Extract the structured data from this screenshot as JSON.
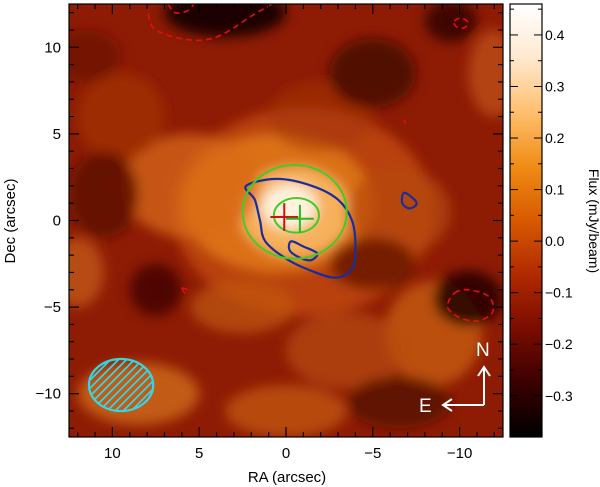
{
  "chart_data": {
    "type": "heatmap",
    "xlabel": "RA (arcsec)",
    "ylabel": "Dec (arcsec)",
    "xlim": [
      12.5,
      -12.5
    ],
    "ylim": [
      -12.5,
      12.5
    ],
    "x_ticks": [
      10,
      5,
      0,
      -5,
      -10
    ],
    "x_tick_labels": [
      "10",
      "5",
      "0",
      "−5",
      "−10"
    ],
    "y_ticks": [
      -10,
      -5,
      0,
      5,
      10
    ],
    "y_tick_labels": [
      "−10",
      "−5",
      "0",
      "5",
      "10"
    ],
    "colorbar": {
      "label": "Flux (mJy/beam)",
      "range": [
        -0.38,
        0.46
      ],
      "ticks": [
        0.4,
        0.3,
        0.2,
        0.1,
        0.0,
        -0.1,
        -0.2,
        -0.3
      ],
      "tick_labels": [
        "0.4",
        "0.3",
        "0.2",
        "0.1",
        "0.0",
        "−0.1",
        "−0.2",
        "−0.3"
      ],
      "colormap": [
        "#000000",
        "#3a0000",
        "#7a0c00",
        "#b02a00",
        "#d85a00",
        "#f08c14",
        "#ffbf6e",
        "#ffe9cf",
        "#ffffff"
      ]
    },
    "emission_peak": {
      "ra": 0.5,
      "dec": 0.5,
      "flux": 0.45
    },
    "blue_contours": [
      {
        "points": [
          [
            2.3,
            2.0
          ],
          [
            0.5,
            2.4
          ],
          [
            -1.5,
            2.0
          ],
          [
            -3.0,
            1.2
          ],
          [
            -3.8,
            0.0
          ],
          [
            -4.0,
            -1.5
          ],
          [
            -3.8,
            -2.8
          ],
          [
            -2.8,
            -3.3
          ],
          [
            -1.2,
            -2.8
          ],
          [
            0.0,
            -2.2
          ],
          [
            1.2,
            -1.2
          ],
          [
            1.5,
            0.0
          ],
          [
            1.8,
            1.2
          ]
        ]
      },
      {
        "points": [
          [
            -0.3,
            -1.2
          ],
          [
            -1.0,
            -1.5
          ],
          [
            -1.8,
            -1.9
          ],
          [
            -1.4,
            -2.3
          ],
          [
            -0.7,
            -2.1
          ],
          [
            -0.2,
            -1.7
          ]
        ]
      },
      {
        "points": [
          [
            -6.8,
            1.6
          ],
          [
            -7.4,
            1.2
          ],
          [
            -7.5,
            0.9
          ],
          [
            -7.1,
            0.7
          ],
          [
            -6.7,
            1.0
          ]
        ]
      }
    ],
    "red_dashed_contours": [
      {
        "points": [
          [
            8.0,
            12.5
          ],
          [
            7.7,
            11.2
          ],
          [
            6.5,
            10.6
          ],
          [
            5.0,
            10.4
          ],
          [
            4.0,
            10.6
          ],
          [
            3.2,
            11.0
          ],
          [
            2.0,
            11.8
          ],
          [
            0.8,
            12.5
          ]
        ]
      },
      {
        "points": [
          [
            6.8,
            12.5
          ],
          [
            6.4,
            12.0
          ],
          [
            5.7,
            12.1
          ],
          [
            5.3,
            12.5
          ]
        ]
      },
      {
        "points": [
          [
            -9.7,
            11.5
          ],
          [
            -10.1,
            11.7
          ],
          [
            -10.5,
            11.4
          ],
          [
            -10.2,
            11.1
          ],
          [
            -9.8,
            11.2
          ]
        ]
      },
      {
        "points": [
          [
            -9.7,
            -4.2
          ],
          [
            -10.5,
            -4.0
          ],
          [
            -11.7,
            -4.4
          ],
          [
            -11.9,
            -5.3
          ],
          [
            -11.0,
            -5.8
          ],
          [
            -10.0,
            -5.6
          ],
          [
            -9.3,
            -5.0
          ]
        ]
      },
      {
        "points": [
          [
            6.0,
            -3.9
          ],
          [
            5.7,
            -4.0
          ],
          [
            5.8,
            -4.2
          ]
        ]
      },
      {
        "points": [
          [
            -6.8,
            5.8
          ],
          [
            -6.9,
            5.6
          ]
        ]
      }
    ],
    "green_ellipses": [
      {
        "ra": -0.5,
        "dec": 0.5,
        "semi_ra": 3.0,
        "semi_dec": 2.7
      },
      {
        "ra": -0.6,
        "dec": 0.3,
        "semi_ra": 1.3,
        "semi_dec": 1.0
      }
    ],
    "markers": [
      {
        "color": "#cc1111",
        "ra": 0.1,
        "dec": 0.2,
        "size": 0.8
      },
      {
        "color": "#22bb22",
        "ra": -0.8,
        "dec": 0.1,
        "size": 0.8
      }
    ],
    "beam": {
      "ra": 9.5,
      "dec": -9.5,
      "semi_major": 1.85,
      "semi_minor": 1.5
    },
    "compass": {
      "north_label": "N",
      "east_label": "E"
    },
    "colors": {
      "blue_contour": "#1a2d9c",
      "red_contour": "#e01010",
      "green": "#44cc22",
      "beam": "#33d6e6"
    }
  }
}
